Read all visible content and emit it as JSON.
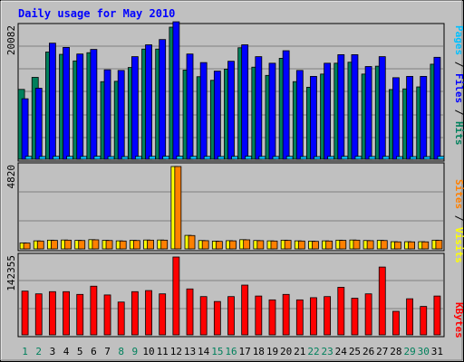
{
  "title": "Daily usage for May 2010",
  "labels": {
    "pages": "Pages",
    "files": "Files",
    "hits": "Hits",
    "sites": "Sites",
    "visits": "Visits",
    "kbytes": "KBytes",
    "sep": " / "
  },
  "colors": {
    "background": "#c0c0c0",
    "title": "#0000ff",
    "hits": "#00805c",
    "files": "#0000ff",
    "pages": "#00c0ff",
    "visits": "#ffff00",
    "sites": "#ff8000",
    "kbytes": "#ff0000",
    "weekend_day": "#00805c",
    "weekday": "#000000"
  },
  "chart_data": [
    {
      "type": "bar",
      "title": "Daily usage for May 2010",
      "x": [
        1,
        2,
        3,
        4,
        5,
        6,
        7,
        8,
        9,
        10,
        11,
        12,
        13,
        14,
        15,
        16,
        17,
        18,
        19,
        20,
        21,
        22,
        23,
        24,
        25,
        26,
        27,
        28,
        29,
        30,
        31
      ],
      "x_label_colors": [
        "#00805c",
        "#00805c",
        "#000000",
        "#000000",
        "#000000",
        "#000000",
        "#000000",
        "#00805c",
        "#00805c",
        "#000000",
        "#000000",
        "#000000",
        "#000000",
        "#000000",
        "#00805c",
        "#00805c",
        "#000000",
        "#000000",
        "#000000",
        "#000000",
        "#000000",
        "#00805c",
        "#00805c",
        "#000000",
        "#000000",
        "#000000",
        "#000000",
        "#000000",
        "#00805c",
        "#00805c",
        "#000000"
      ],
      "ymax_label": "20082",
      "ylim": [
        0,
        20082
      ],
      "right_axis_label": "Pages / Files / Hits",
      "series": [
        {
          "name": "Hits",
          "color": "#00805c",
          "values": [
            10620,
            12450,
            16300,
            15950,
            14950,
            16200,
            11800,
            11850,
            13950,
            16750,
            16750,
            20082,
            13550,
            12550,
            12000,
            13700,
            16950,
            14000,
            12750,
            15350,
            11800,
            10950,
            12950,
            14600,
            14750,
            12950,
            14150,
            10600,
            10700,
            11000,
            14450
          ]
        },
        {
          "name": "Files",
          "color": "#0000ff",
          "values": [
            9200,
            10800,
            17650,
            17000,
            16000,
            16700,
            13600,
            13500,
            15600,
            17400,
            18200,
            20900,
            16000,
            14700,
            13400,
            14900,
            17400,
            15600,
            14600,
            16500,
            13500,
            12600,
            14600,
            15900,
            15900,
            14100,
            15600,
            12400,
            12600,
            12600,
            15500
          ]
        },
        {
          "name": "Pages",
          "color": "#00c0ff",
          "values": [
            450,
            430,
            450,
            450,
            440,
            460,
            420,
            410,
            440,
            450,
            460,
            480,
            450,
            440,
            430,
            440,
            470,
            440,
            430,
            450,
            420,
            410,
            440,
            450,
            450,
            430,
            440,
            410,
            410,
            410,
            450
          ]
        }
      ]
    },
    {
      "type": "bar",
      "x": [
        1,
        2,
        3,
        4,
        5,
        6,
        7,
        8,
        9,
        10,
        11,
        12,
        13,
        14,
        15,
        16,
        17,
        18,
        19,
        20,
        21,
        22,
        23,
        24,
        25,
        26,
        27,
        28,
        29,
        30,
        31
      ],
      "ymax_label": "4820",
      "ylim": [
        0,
        4820
      ],
      "right_axis_label": "Sites / Visits",
      "series": [
        {
          "name": "Visits",
          "color": "#ffff00",
          "values": [
            350,
            470,
            510,
            520,
            500,
            540,
            500,
            470,
            500,
            520,
            520,
            4820,
            790,
            490,
            450,
            480,
            540,
            490,
            470,
            510,
            470,
            450,
            470,
            510,
            520,
            490,
            500,
            420,
            420,
            420,
            510
          ]
        },
        {
          "name": "Sites",
          "color": "#ff8000",
          "values": [
            340,
            460,
            500,
            510,
            490,
            530,
            490,
            460,
            490,
            510,
            510,
            4820,
            780,
            480,
            440,
            470,
            530,
            480,
            460,
            500,
            460,
            440,
            460,
            500,
            510,
            480,
            490,
            410,
            410,
            410,
            500
          ]
        }
      ]
    },
    {
      "type": "bar",
      "x": [
        1,
        2,
        3,
        4,
        5,
        6,
        7,
        8,
        9,
        10,
        11,
        12,
        13,
        14,
        15,
        16,
        17,
        18,
        19,
        20,
        21,
        22,
        23,
        24,
        25,
        26,
        27,
        28,
        29,
        30,
        31
      ],
      "ymax_label": "142355",
      "ylim": [
        0,
        142355
      ],
      "right_axis_label": "KBytes",
      "series": [
        {
          "name": "KBytes",
          "color": "#ff0000",
          "values": [
            80000,
            75000,
            79000,
            79000,
            74000,
            89000,
            73000,
            60000,
            79000,
            81000,
            75000,
            142355,
            84000,
            70000,
            61000,
            70000,
            91000,
            71000,
            64000,
            74000,
            64000,
            68000,
            70000,
            87000,
            67000,
            75000,
            124000,
            43000,
            66000,
            52000,
            71000
          ]
        }
      ]
    }
  ]
}
